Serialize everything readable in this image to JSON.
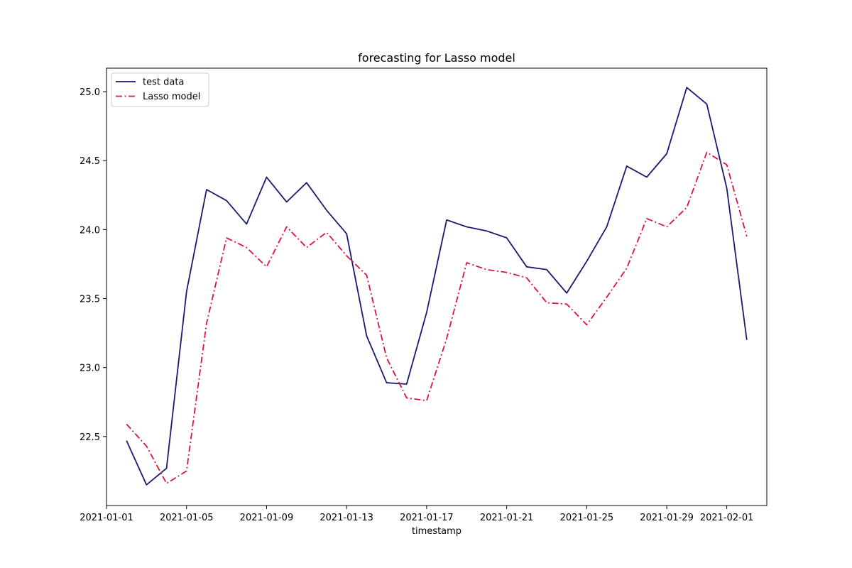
{
  "chart_data": {
    "type": "line",
    "title": "forecasting for Lasso model",
    "xlabel": "timestamp",
    "ylabel": "",
    "x_scale": "date",
    "xlim": [
      "2021-01-01",
      "2021-02-03"
    ],
    "ylim": [
      22.0,
      25.17
    ],
    "x_ticks": [
      "2021-01-01",
      "2021-01-05",
      "2021-01-09",
      "2021-01-13",
      "2021-01-17",
      "2021-01-21",
      "2021-01-25",
      "2021-01-29",
      "2021-02-01"
    ],
    "y_ticks": [
      22.5,
      23.0,
      23.5,
      24.0,
      24.5,
      25.0
    ],
    "y_tick_labels": [
      "22.5",
      "23.0",
      "23.5",
      "24.0",
      "24.5",
      "25.0"
    ],
    "grid": false,
    "legend_position": "top-left",
    "x": [
      "2021-01-02",
      "2021-01-03",
      "2021-01-04",
      "2021-01-05",
      "2021-01-06",
      "2021-01-07",
      "2021-01-08",
      "2021-01-09",
      "2021-01-10",
      "2021-01-11",
      "2021-01-12",
      "2021-01-13",
      "2021-01-14",
      "2021-01-15",
      "2021-01-16",
      "2021-01-17",
      "2021-01-18",
      "2021-01-19",
      "2021-01-20",
      "2021-01-21",
      "2021-01-22",
      "2021-01-23",
      "2021-01-24",
      "2021-01-25",
      "2021-01-26",
      "2021-01-27",
      "2021-01-28",
      "2021-01-29",
      "2021-01-30",
      "2021-01-31",
      "2021-02-01",
      "2021-02-02"
    ],
    "series": [
      {
        "name": "test data",
        "color": "#191970",
        "style": "solid",
        "values": [
          22.47,
          22.15,
          22.27,
          23.55,
          24.29,
          24.21,
          24.04,
          24.38,
          24.2,
          24.34,
          24.14,
          23.97,
          23.23,
          22.89,
          22.88,
          23.4,
          24.07,
          24.02,
          23.99,
          23.94,
          23.73,
          23.71,
          23.54,
          23.77,
          24.02,
          24.46,
          24.38,
          24.55,
          25.03,
          24.91,
          24.3,
          23.2
        ]
      },
      {
        "name": "Lasso model",
        "color": "#dc143c",
        "style": "dashdot",
        "values": [
          22.59,
          22.43,
          22.16,
          22.25,
          23.32,
          23.94,
          23.87,
          23.73,
          24.02,
          23.87,
          23.98,
          23.81,
          23.67,
          23.07,
          22.78,
          22.76,
          23.21,
          23.76,
          23.71,
          23.69,
          23.65,
          23.47,
          23.46,
          23.31,
          23.51,
          23.72,
          24.08,
          24.02,
          24.16,
          24.56,
          24.47,
          23.95
        ]
      }
    ]
  }
}
